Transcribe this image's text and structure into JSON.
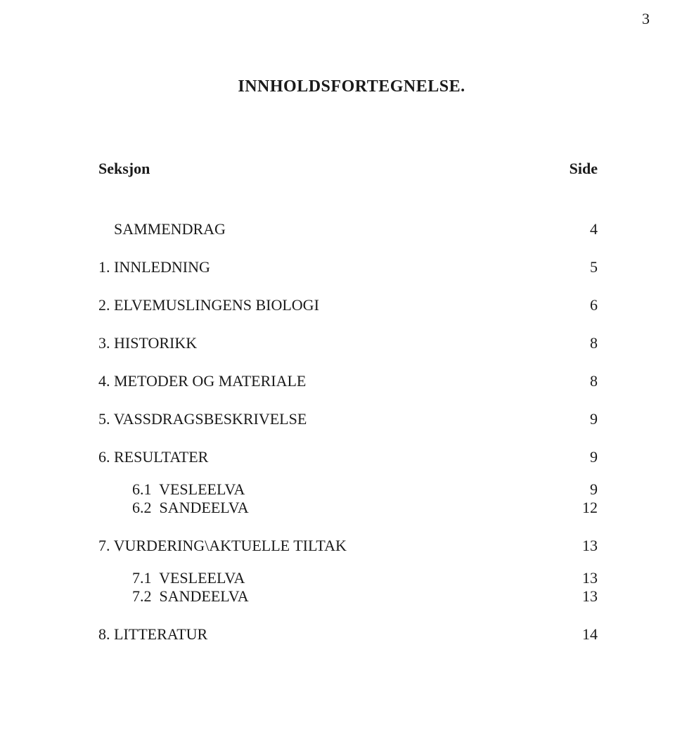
{
  "page_number": "3",
  "title": "INNHOLDSFORTEGNELSE.",
  "header": {
    "left": "Seksjon",
    "right": "Side"
  },
  "entries": [
    {
      "label": "    SAMMENDRAG",
      "page": "4",
      "cls": "spaced"
    },
    {
      "label": "1. INNLEDNING",
      "page": "5",
      "cls": "spaced"
    },
    {
      "label": "2. ELVEMUSLINGENS BIOLOGI",
      "page": "6",
      "cls": "spaced"
    },
    {
      "label": "3. HISTORIKK",
      "page": "8",
      "cls": "spaced"
    },
    {
      "label": "4. METODER OG MATERIALE",
      "page": "8",
      "cls": "spaced"
    },
    {
      "label": "5. VASSDRAGSBESKRIVELSE",
      "page": "9",
      "cls": "spaced"
    },
    {
      "label": "6. RESULTATER",
      "page": "9",
      "cls": "spaced"
    },
    {
      "label": "6.1  VESLEELVA",
      "page": "9",
      "cls": "sub sub-first"
    },
    {
      "label": "6.2  SANDEELVA",
      "page": "12",
      "cls": "sub"
    },
    {
      "label": "7. VURDERING\\AKTUELLE TILTAK",
      "page": "13",
      "cls": "spaced"
    },
    {
      "label": "7.1  VESLEELVA",
      "page": "13",
      "cls": "sub sub-first"
    },
    {
      "label": "7.2  SANDEELVA",
      "page": "13",
      "cls": "sub"
    },
    {
      "label": "8. LITTERATUR",
      "page": "14",
      "cls": "spaced"
    }
  ]
}
